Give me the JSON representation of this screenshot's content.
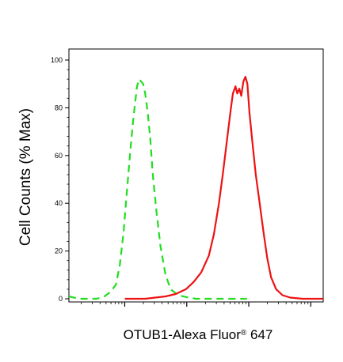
{
  "chart_data": {
    "type": "line",
    "xlabel": "OTUB1-Alexa Fluor",
    "xlabel_mark": "®",
    "xlabel_suffix": " 647",
    "ylabel": "Cell Counts (% Max)",
    "ylim": [
      0,
      100
    ],
    "y_ticks": [
      "0",
      "20",
      "40",
      "60",
      "80",
      "100"
    ],
    "x_scale": "log",
    "x_tick_labels_shown": false,
    "grid": false,
    "legend": "none",
    "series": [
      {
        "color": "#22dd22",
        "line_style": "dashed",
        "x": [
          0.0,
          0.04,
          0.08,
          0.11,
          0.14,
          0.165,
          0.185,
          0.2,
          0.215,
          0.228,
          0.24,
          0.25,
          0.26,
          0.268,
          0.276,
          0.284,
          0.292,
          0.3,
          0.31,
          0.32,
          0.33,
          0.345,
          0.36,
          0.38,
          0.4,
          0.43,
          0.47,
          0.5,
          0.55,
          0.6,
          0.7
        ],
        "y": [
          1,
          0,
          0,
          0,
          1,
          3,
          6,
          14,
          28,
          45,
          60,
          72,
          82,
          89,
          92,
          91,
          90,
          86,
          78,
          67,
          52,
          36,
          22,
          10,
          4,
          1.5,
          0.5,
          0,
          0,
          0,
          0
        ]
      },
      {
        "color": "#ee1111",
        "line_style": "solid",
        "x": [
          0.22,
          0.3,
          0.34,
          0.38,
          0.42,
          0.46,
          0.49,
          0.52,
          0.55,
          0.57,
          0.59,
          0.605,
          0.62,
          0.635,
          0.645,
          0.655,
          0.662,
          0.67,
          0.678,
          0.686,
          0.694,
          0.702,
          0.71,
          0.722,
          0.735,
          0.75,
          0.765,
          0.78,
          0.795,
          0.815,
          0.84,
          0.87,
          0.92,
          1.0
        ],
        "y": [
          0,
          0,
          0.5,
          1,
          2,
          4,
          7,
          11,
          18,
          27,
          40,
          52,
          65,
          78,
          86,
          89,
          86,
          88,
          85,
          91,
          93,
          90,
          78,
          65,
          52,
          40,
          28,
          17,
          9,
          4,
          1.5,
          0.5,
          0,
          0
        ]
      }
    ]
  }
}
